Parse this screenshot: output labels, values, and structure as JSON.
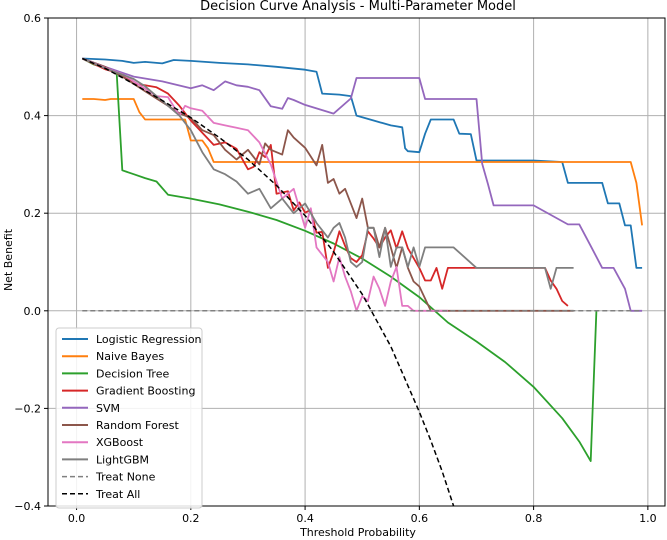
{
  "chart_data": {
    "type": "line",
    "title": "Decision Curve Analysis - Multi-Parameter Model",
    "xlabel": "Threshold Probability",
    "ylabel": "Net Benefit",
    "xlim": [
      -0.05,
      1.03
    ],
    "ylim": [
      -0.4,
      0.6
    ],
    "xticks": [
      0.0,
      0.2,
      0.4,
      0.6,
      0.8,
      1.0
    ],
    "yticks": [
      -0.4,
      -0.2,
      0.0,
      0.2,
      0.4,
      0.6
    ],
    "xtick_labels": [
      "0.0",
      "0.2",
      "0.4",
      "0.6",
      "0.8",
      "1.0"
    ],
    "ytick_labels": [
      "−0.4",
      "−0.2",
      "0.0",
      "0.2",
      "0.4",
      "0.6"
    ],
    "grid": true,
    "legend_position": "lower-left",
    "series": [
      {
        "name": "Logistic Regression",
        "color": "#1f77b4",
        "style": "solid",
        "x": [
          0.01,
          0.05,
          0.08,
          0.1,
          0.12,
          0.15,
          0.17,
          0.2,
          0.25,
          0.3,
          0.35,
          0.4,
          0.42,
          0.43,
          0.46,
          0.48,
          0.49,
          0.52,
          0.55,
          0.57,
          0.575,
          0.58,
          0.6,
          0.61,
          0.62,
          0.66,
          0.67,
          0.69,
          0.7,
          0.8,
          0.85,
          0.86,
          0.88,
          0.9,
          0.92,
          0.93,
          0.95,
          0.96,
          0.97,
          0.98,
          0.99
        ],
        "y": [
          0.517,
          0.515,
          0.512,
          0.508,
          0.51,
          0.507,
          0.514,
          0.512,
          0.508,
          0.505,
          0.5,
          0.494,
          0.49,
          0.445,
          0.443,
          0.44,
          0.4,
          0.39,
          0.38,
          0.376,
          0.333,
          0.327,
          0.325,
          0.363,
          0.392,
          0.392,
          0.363,
          0.362,
          0.308,
          0.308,
          0.305,
          0.262,
          0.262,
          0.262,
          0.262,
          0.22,
          0.22,
          0.175,
          0.175,
          0.088,
          0.088
        ]
      },
      {
        "name": "Naive Bayes",
        "color": "#ff7f0e",
        "style": "solid",
        "x": [
          0.01,
          0.03,
          0.05,
          0.06,
          0.07,
          0.08,
          0.1,
          0.11,
          0.12,
          0.19,
          0.2,
          0.22,
          0.23,
          0.24,
          0.25,
          0.97,
          0.98,
          0.99
        ],
        "y": [
          0.434,
          0.434,
          0.432,
          0.434,
          0.434,
          0.434,
          0.434,
          0.407,
          0.392,
          0.392,
          0.349,
          0.349,
          0.333,
          0.305,
          0.305,
          0.305,
          0.262,
          0.175
        ]
      },
      {
        "name": "Decision Tree",
        "color": "#2ca02c",
        "style": "solid",
        "x": [
          0.01,
          0.03,
          0.05,
          0.07,
          0.08,
          0.1,
          0.12,
          0.14,
          0.16,
          0.2,
          0.25,
          0.3,
          0.35,
          0.4,
          0.45,
          0.5,
          0.55,
          0.6,
          0.65,
          0.7,
          0.75,
          0.8,
          0.85,
          0.88,
          0.89,
          0.9,
          0.905,
          0.91
        ],
        "y": [
          0.517,
          0.505,
          0.498,
          0.49,
          0.288,
          0.28,
          0.272,
          0.265,
          0.238,
          0.23,
          0.218,
          0.203,
          0.186,
          0.164,
          0.138,
          0.107,
          0.07,
          0.028,
          -0.024,
          -0.063,
          -0.105,
          -0.156,
          -0.22,
          -0.268,
          -0.288,
          -0.308,
          -0.15,
          0.0
        ]
      },
      {
        "name": "Gradient Boosting",
        "color": "#d62728",
        "style": "solid",
        "x": [
          0.01,
          0.05,
          0.08,
          0.1,
          0.12,
          0.14,
          0.16,
          0.18,
          0.2,
          0.22,
          0.24,
          0.26,
          0.28,
          0.3,
          0.31,
          0.32,
          0.33,
          0.34,
          0.35,
          0.37,
          0.38,
          0.39,
          0.4,
          0.41,
          0.42,
          0.43,
          0.44,
          0.45,
          0.46,
          0.47,
          0.48,
          0.49,
          0.5,
          0.51,
          0.52,
          0.53,
          0.54,
          0.55,
          0.56,
          0.57,
          0.58,
          0.59,
          0.6,
          0.61,
          0.62,
          0.63,
          0.64,
          0.65,
          0.66,
          0.67,
          0.7,
          0.75,
          0.8,
          0.82,
          0.83,
          0.84,
          0.85,
          0.86
        ],
        "y": [
          0.517,
          0.495,
          0.485,
          0.465,
          0.462,
          0.458,
          0.445,
          0.42,
          0.39,
          0.365,
          0.34,
          0.345,
          0.332,
          0.29,
          0.295,
          0.325,
          0.315,
          0.34,
          0.24,
          0.245,
          0.206,
          0.222,
          0.201,
          0.207,
          0.16,
          0.162,
          0.088,
          0.12,
          0.163,
          0.133,
          0.108,
          0.1,
          0.114,
          0.163,
          0.148,
          0.13,
          0.15,
          0.165,
          0.128,
          0.163,
          0.128,
          0.108,
          0.088,
          0.062,
          0.062,
          0.088,
          0.045,
          0.088,
          0.088,
          0.088,
          0.088,
          0.088,
          0.088,
          0.088,
          0.062,
          0.045,
          0.02,
          0.01
        ]
      },
      {
        "name": "SVM",
        "color": "#9467bd",
        "style": "solid",
        "x": [
          0.01,
          0.05,
          0.1,
          0.15,
          0.2,
          0.22,
          0.24,
          0.26,
          0.28,
          0.3,
          0.32,
          0.34,
          0.36,
          0.37,
          0.38,
          0.4,
          0.45,
          0.48,
          0.49,
          0.5,
          0.6,
          0.61,
          0.65,
          0.7,
          0.71,
          0.72,
          0.73,
          0.75,
          0.8,
          0.86,
          0.88,
          0.9,
          0.92,
          0.94,
          0.96,
          0.97,
          0.98,
          0.99
        ],
        "y": [
          0.517,
          0.5,
          0.48,
          0.47,
          0.456,
          0.462,
          0.452,
          0.47,
          0.462,
          0.459,
          0.452,
          0.419,
          0.414,
          0.436,
          0.432,
          0.422,
          0.404,
          0.435,
          0.477,
          0.477,
          0.477,
          0.434,
          0.434,
          0.434,
          0.301,
          0.26,
          0.216,
          0.216,
          0.216,
          0.177,
          0.177,
          0.133,
          0.088,
          0.088,
          0.045,
          0.0,
          0.0,
          0.0
        ]
      },
      {
        "name": "Random Forest",
        "color": "#8c564b",
        "style": "solid",
        "x": [
          0.01,
          0.05,
          0.08,
          0.1,
          0.12,
          0.14,
          0.16,
          0.18,
          0.2,
          0.22,
          0.24,
          0.26,
          0.28,
          0.3,
          0.32,
          0.33,
          0.34,
          0.36,
          0.37,
          0.38,
          0.4,
          0.42,
          0.43,
          0.44,
          0.45,
          0.46,
          0.47,
          0.48,
          0.49,
          0.5,
          0.51,
          0.52,
          0.53,
          0.54,
          0.55,
          0.56,
          0.57,
          0.58,
          0.59,
          0.6,
          0.62,
          0.65,
          0.7,
          0.75,
          0.8,
          0.83,
          0.84,
          0.85,
          0.86,
          0.87
        ],
        "y": [
          0.517,
          0.5,
          0.48,
          0.465,
          0.45,
          0.435,
          0.42,
          0.405,
          0.395,
          0.37,
          0.36,
          0.33,
          0.31,
          0.33,
          0.3,
          0.343,
          0.33,
          0.32,
          0.37,
          0.355,
          0.334,
          0.298,
          0.34,
          0.262,
          0.27,
          0.24,
          0.25,
          0.22,
          0.19,
          0.23,
          0.17,
          0.17,
          0.13,
          0.17,
          0.13,
          0.088,
          0.13,
          0.088,
          0.06,
          0.05,
          0.0,
          0.0,
          0.0,
          0.0,
          0.0,
          0.0,
          0.0,
          0.0,
          0.0,
          0.0
        ]
      },
      {
        "name": "XGBoost",
        "color": "#e377c2",
        "style": "solid",
        "x": [
          0.01,
          0.05,
          0.08,
          0.1,
          0.12,
          0.14,
          0.16,
          0.18,
          0.19,
          0.2,
          0.22,
          0.24,
          0.26,
          0.28,
          0.3,
          0.32,
          0.34,
          0.36,
          0.38,
          0.4,
          0.41,
          0.42,
          0.43,
          0.44,
          0.45,
          0.46,
          0.47,
          0.48,
          0.49,
          0.5,
          0.51,
          0.52,
          0.53,
          0.54,
          0.55,
          0.56,
          0.57,
          0.58,
          0.59,
          0.6,
          0.61,
          0.62,
          0.63,
          0.64,
          0.65
        ],
        "y": [
          0.517,
          0.498,
          0.485,
          0.47,
          0.455,
          0.44,
          0.438,
          0.4,
          0.42,
          0.415,
          0.41,
          0.385,
          0.38,
          0.375,
          0.37,
          0.345,
          0.3,
          0.23,
          0.25,
          0.17,
          0.21,
          0.13,
          0.115,
          0.1,
          0.06,
          0.11,
          0.07,
          0.04,
          0.0,
          0.03,
          0.02,
          0.07,
          0.045,
          0.01,
          0.06,
          0.09,
          0.01,
          0.01,
          0.0,
          0.0,
          0.0,
          0.0,
          0.0,
          0.0,
          0.0
        ]
      },
      {
        "name": "LightGBM",
        "color": "#7f7f7f",
        "style": "solid",
        "x": [
          0.01,
          0.05,
          0.08,
          0.1,
          0.12,
          0.14,
          0.16,
          0.18,
          0.2,
          0.22,
          0.24,
          0.26,
          0.28,
          0.3,
          0.32,
          0.34,
          0.36,
          0.38,
          0.4,
          0.42,
          0.44,
          0.45,
          0.46,
          0.47,
          0.48,
          0.49,
          0.5,
          0.51,
          0.52,
          0.53,
          0.54,
          0.55,
          0.56,
          0.57,
          0.58,
          0.59,
          0.6,
          0.61,
          0.62,
          0.65,
          0.66,
          0.7,
          0.75,
          0.8,
          0.82,
          0.83,
          0.84,
          0.85,
          0.86,
          0.87
        ],
        "y": [
          0.517,
          0.497,
          0.484,
          0.475,
          0.46,
          0.44,
          0.42,
          0.4,
          0.37,
          0.325,
          0.29,
          0.28,
          0.265,
          0.24,
          0.25,
          0.21,
          0.23,
          0.2,
          0.22,
          0.18,
          0.15,
          0.17,
          0.18,
          0.15,
          0.1,
          0.09,
          0.1,
          0.17,
          0.17,
          0.11,
          0.17,
          0.09,
          0.13,
          0.13,
          0.09,
          0.13,
          0.09,
          0.13,
          0.13,
          0.13,
          0.13,
          0.088,
          0.088,
          0.088,
          0.088,
          0.045,
          0.088,
          0.088,
          0.088,
          0.088
        ]
      },
      {
        "name": "Treat None",
        "color": "#808080",
        "style": "dashed",
        "x": [
          0.01,
          0.99
        ],
        "y": [
          0.0,
          0.0
        ]
      },
      {
        "name": "Treat All",
        "color": "#000000",
        "style": "dashed",
        "x": [
          0.01,
          0.05,
          0.1,
          0.15,
          0.2,
          0.25,
          0.3,
          0.35,
          0.4,
          0.45,
          0.5,
          0.55,
          0.6,
          0.62,
          0.64,
          0.66
        ],
        "y": [
          0.517,
          0.497,
          0.465,
          0.431,
          0.396,
          0.355,
          0.31,
          0.257,
          0.195,
          0.121,
          0.034,
          -0.073,
          -0.207,
          -0.266,
          -0.329,
          -0.4
        ]
      }
    ]
  }
}
